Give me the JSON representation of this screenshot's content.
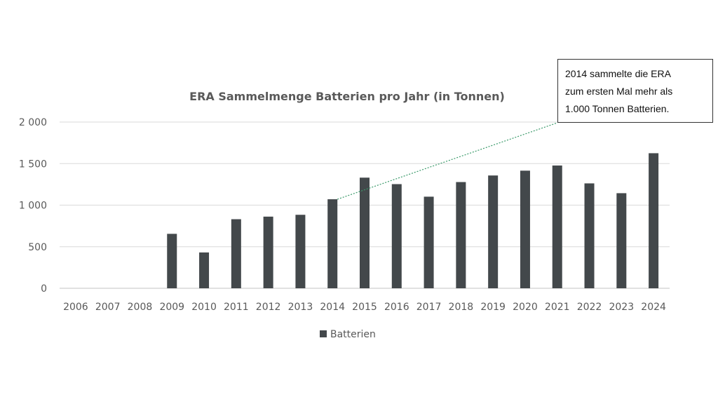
{
  "chart_data": {
    "type": "bar",
    "title": "ERA Sammelmenge Batterien pro Jahr (in Tonnen)",
    "categories": [
      "2006",
      "2007",
      "2008",
      "2009",
      "2010",
      "2011",
      "2012",
      "2013",
      "2014",
      "2015",
      "2016",
      "2017",
      "2018",
      "2019",
      "2020",
      "2021",
      "2022",
      "2023",
      "2024"
    ],
    "series": [
      {
        "name": "Batterien",
        "values": [
          0,
          0,
          0,
          655,
          431,
          831,
          862,
          884,
          1071,
          1331,
          1253,
          1102,
          1278,
          1357,
          1415,
          1477,
          1262,
          1144,
          1625
        ]
      }
    ],
    "ylim": [
      0,
      2000
    ],
    "yticks": [
      0,
      500,
      1000,
      1500,
      2000
    ],
    "ytick_labels": [
      "0",
      "500",
      "1 000",
      "1 500",
      "2 000"
    ],
    "xlabel": "",
    "ylabel": "",
    "grid": true,
    "legend": "bottom",
    "bar_color": "#43484b",
    "annotation": {
      "target": "2014",
      "lines": [
        "2014 sammelte die ERA",
        "zum ersten Mal mehr als",
        "1.000 Tonnen Batterien."
      ],
      "leader_color": "#3a9a6a"
    }
  }
}
